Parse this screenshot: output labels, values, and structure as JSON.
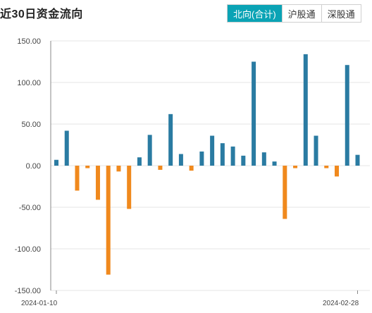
{
  "header": {
    "title": "近30日资金流向",
    "tabs": [
      {
        "label": "北向(合计)",
        "active": true
      },
      {
        "label": "沪股通",
        "active": false
      },
      {
        "label": "深股通",
        "active": false
      }
    ]
  },
  "colors": {
    "accent": "#0aa3b5",
    "positive": "#2a7ba2",
    "negative": "#f0891d",
    "grid": "#e6e6e6",
    "axis": "#888888"
  },
  "chart_data": {
    "type": "bar",
    "title": "",
    "xlabel": "",
    "ylabel": "",
    "ylim": [
      -150,
      150
    ],
    "yticks": [
      "150.00",
      "100.00",
      "50.00",
      "0.00",
      "-50.00",
      "-100.00",
      "-150.00"
    ],
    "ytick_values": [
      150,
      100,
      50,
      0,
      -50,
      -100,
      -150
    ],
    "x_start_label": "2024-01-10",
    "x_end_label": "2024-02-28",
    "grid": true,
    "values": [
      7,
      42,
      -30,
      -3,
      -41,
      -131,
      -7,
      -52,
      10,
      37,
      -5,
      62,
      14,
      -6,
      17,
      36,
      27,
      23,
      12,
      125,
      16,
      5,
      -64,
      -3,
      134,
      36,
      -3,
      -13,
      121,
      13
    ]
  }
}
